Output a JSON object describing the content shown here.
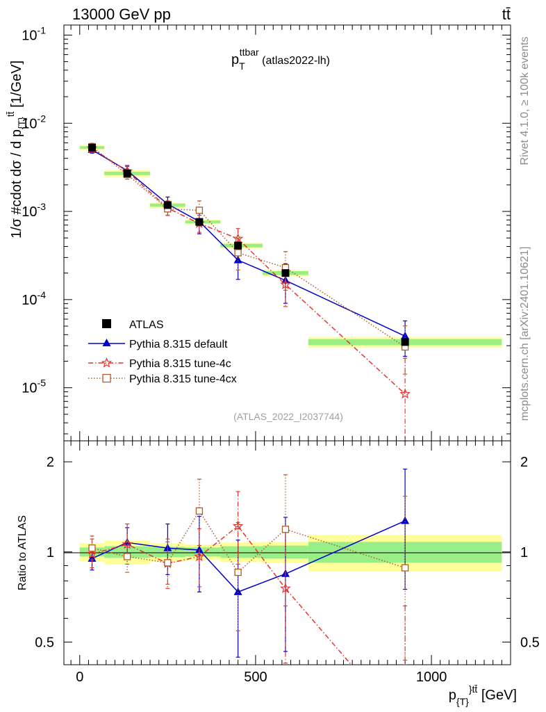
{
  "header": {
    "left": "13000 GeV pp",
    "right": "tt̄"
  },
  "side_labels": {
    "rivet": "Rivet 4.1.0, ≥ 100k events",
    "mcplots": "mcplots.cern.ch [arXiv:2401.10621]"
  },
  "plot": {
    "title_main": "p",
    "title_sub": "T",
    "title_sup": "ttbar",
    "title_suffix": " (atlas2022-lh)",
    "analysis_id": "(ATLAS_2022_I2037744)",
    "ylabel": "1/σ #cdot dσ / d p",
    "ylabel_sub": "{T}",
    "ylabel_sup": "tt̄",
    "ylabel_unit": " [1/GeV]",
    "ratio_ylabel": "Ratio to ATLAS",
    "xlabel": "p",
    "xlabel_sub": "{T}",
    "xlabel_sup": "}tt̄",
    "xlabel_unit": " [GeV]"
  },
  "chart_data": {
    "type": "scatter",
    "title": "p_T^ttbar (atlas2022-lh)",
    "xlabel": "p_{T}}^tt̄ [GeV]",
    "ylabel": "1/σ #cdot dσ / d p_{T}}^tt̄ [1/GeV]",
    "xlim": [
      -45,
      1225
    ],
    "ylim": [
      2.5e-06,
      0.13
    ],
    "yscale": "log",
    "ratio_ylim": [
      0.42,
      2.35
    ],
    "x_ticks": [
      "0",
      "500",
      "1000"
    ],
    "y_ticks": [
      "10^-5",
      "10^-4",
      "10^-3",
      "10^-2",
      "10^-1"
    ],
    "ratio_ticks": [
      "0.5",
      "1",
      "2"
    ],
    "bins": [
      [
        0,
        70
      ],
      [
        70,
        200
      ],
      [
        200,
        300
      ],
      [
        300,
        400
      ],
      [
        400,
        520
      ],
      [
        520,
        650
      ],
      [
        650,
        1200
      ]
    ],
    "data": {
      "name": "ATLAS",
      "x": [
        35,
        135,
        250,
        340,
        450,
        585,
        925
      ],
      "y": [
        0.0053,
        0.0027,
        0.00118,
        0.00076,
        0.00041,
        0.0002,
        3.3e-05
      ],
      "rel_err_inner": [
        0.035,
        0.045,
        0.04,
        0.035,
        0.045,
        0.05,
        0.08
      ],
      "rel_err_outer": [
        0.07,
        0.09,
        0.07,
        0.06,
        0.075,
        0.08,
        0.14
      ]
    },
    "series": [
      {
        "name": "Pythia 8.315 default",
        "color": "#0000cc",
        "marker": "triangle",
        "linestyle": "solid",
        "x": [
          35,
          135,
          250,
          340,
          450,
          585,
          925
        ],
        "y": [
          0.005,
          0.0029,
          0.00121,
          0.00077,
          0.00028,
          0.000165,
          3.85e-05
        ],
        "ratio": [
          0.95,
          1.075,
          1.03,
          1.015,
          0.735,
          0.845,
          1.27
        ],
        "ratio_err_lo": [
          0.08,
          0.12,
          0.19,
          0.28,
          0.29,
          0.38,
          0.52
        ],
        "ratio_err_hi": [
          0.08,
          0.13,
          0.21,
          0.3,
          0.36,
          0.46,
          0.62
        ]
      },
      {
        "name": "Pythia 8.315 tune-4c",
        "color": "#e8332f",
        "marker": "star",
        "linestyle": "dashdot",
        "x": [
          35,
          135,
          250,
          340,
          450,
          585,
          925
        ],
        "y": [
          0.0052,
          0.00285,
          0.00109,
          0.00073,
          0.00049,
          0.000148,
          8.5e-06
        ],
        "ratio": [
          0.985,
          1.06,
          0.915,
          0.965,
          1.22,
          0.755,
          0.26
        ],
        "ratio_err_lo": [
          0.1,
          0.15,
          0.16,
          0.2,
          0.31,
          0.33,
          0.3
        ],
        "ratio_err_hi": [
          0.12,
          0.18,
          0.19,
          0.23,
          0.37,
          0.42,
          0.4
        ]
      },
      {
        "name": "Pythia 8.315 tune-4cx",
        "color": "#b05a25",
        "marker": "square-open",
        "linestyle": "dotted",
        "x": [
          35,
          135,
          250,
          340,
          450,
          585,
          925
        ],
        "y": [
          0.0054,
          0.00262,
          0.00107,
          0.00103,
          0.00034,
          0.00023,
          2.9e-05
        ],
        "ratio": [
          1.03,
          0.965,
          0.92,
          1.37,
          0.855,
          1.19,
          0.885
        ],
        "ratio_err_lo": [
          0.09,
          0.11,
          0.14,
          0.32,
          0.31,
          0.53,
          0.45
        ],
        "ratio_err_hi": [
          0.1,
          0.12,
          0.16,
          0.38,
          0.4,
          0.62,
          0.65
        ]
      }
    ]
  },
  "legend": {
    "data_label": "ATLAS",
    "entries": [
      "Pythia 8.315 default",
      "Pythia 8.315 tune-4c",
      "Pythia 8.315 tune-4cx"
    ],
    "position": "bottom-left"
  }
}
